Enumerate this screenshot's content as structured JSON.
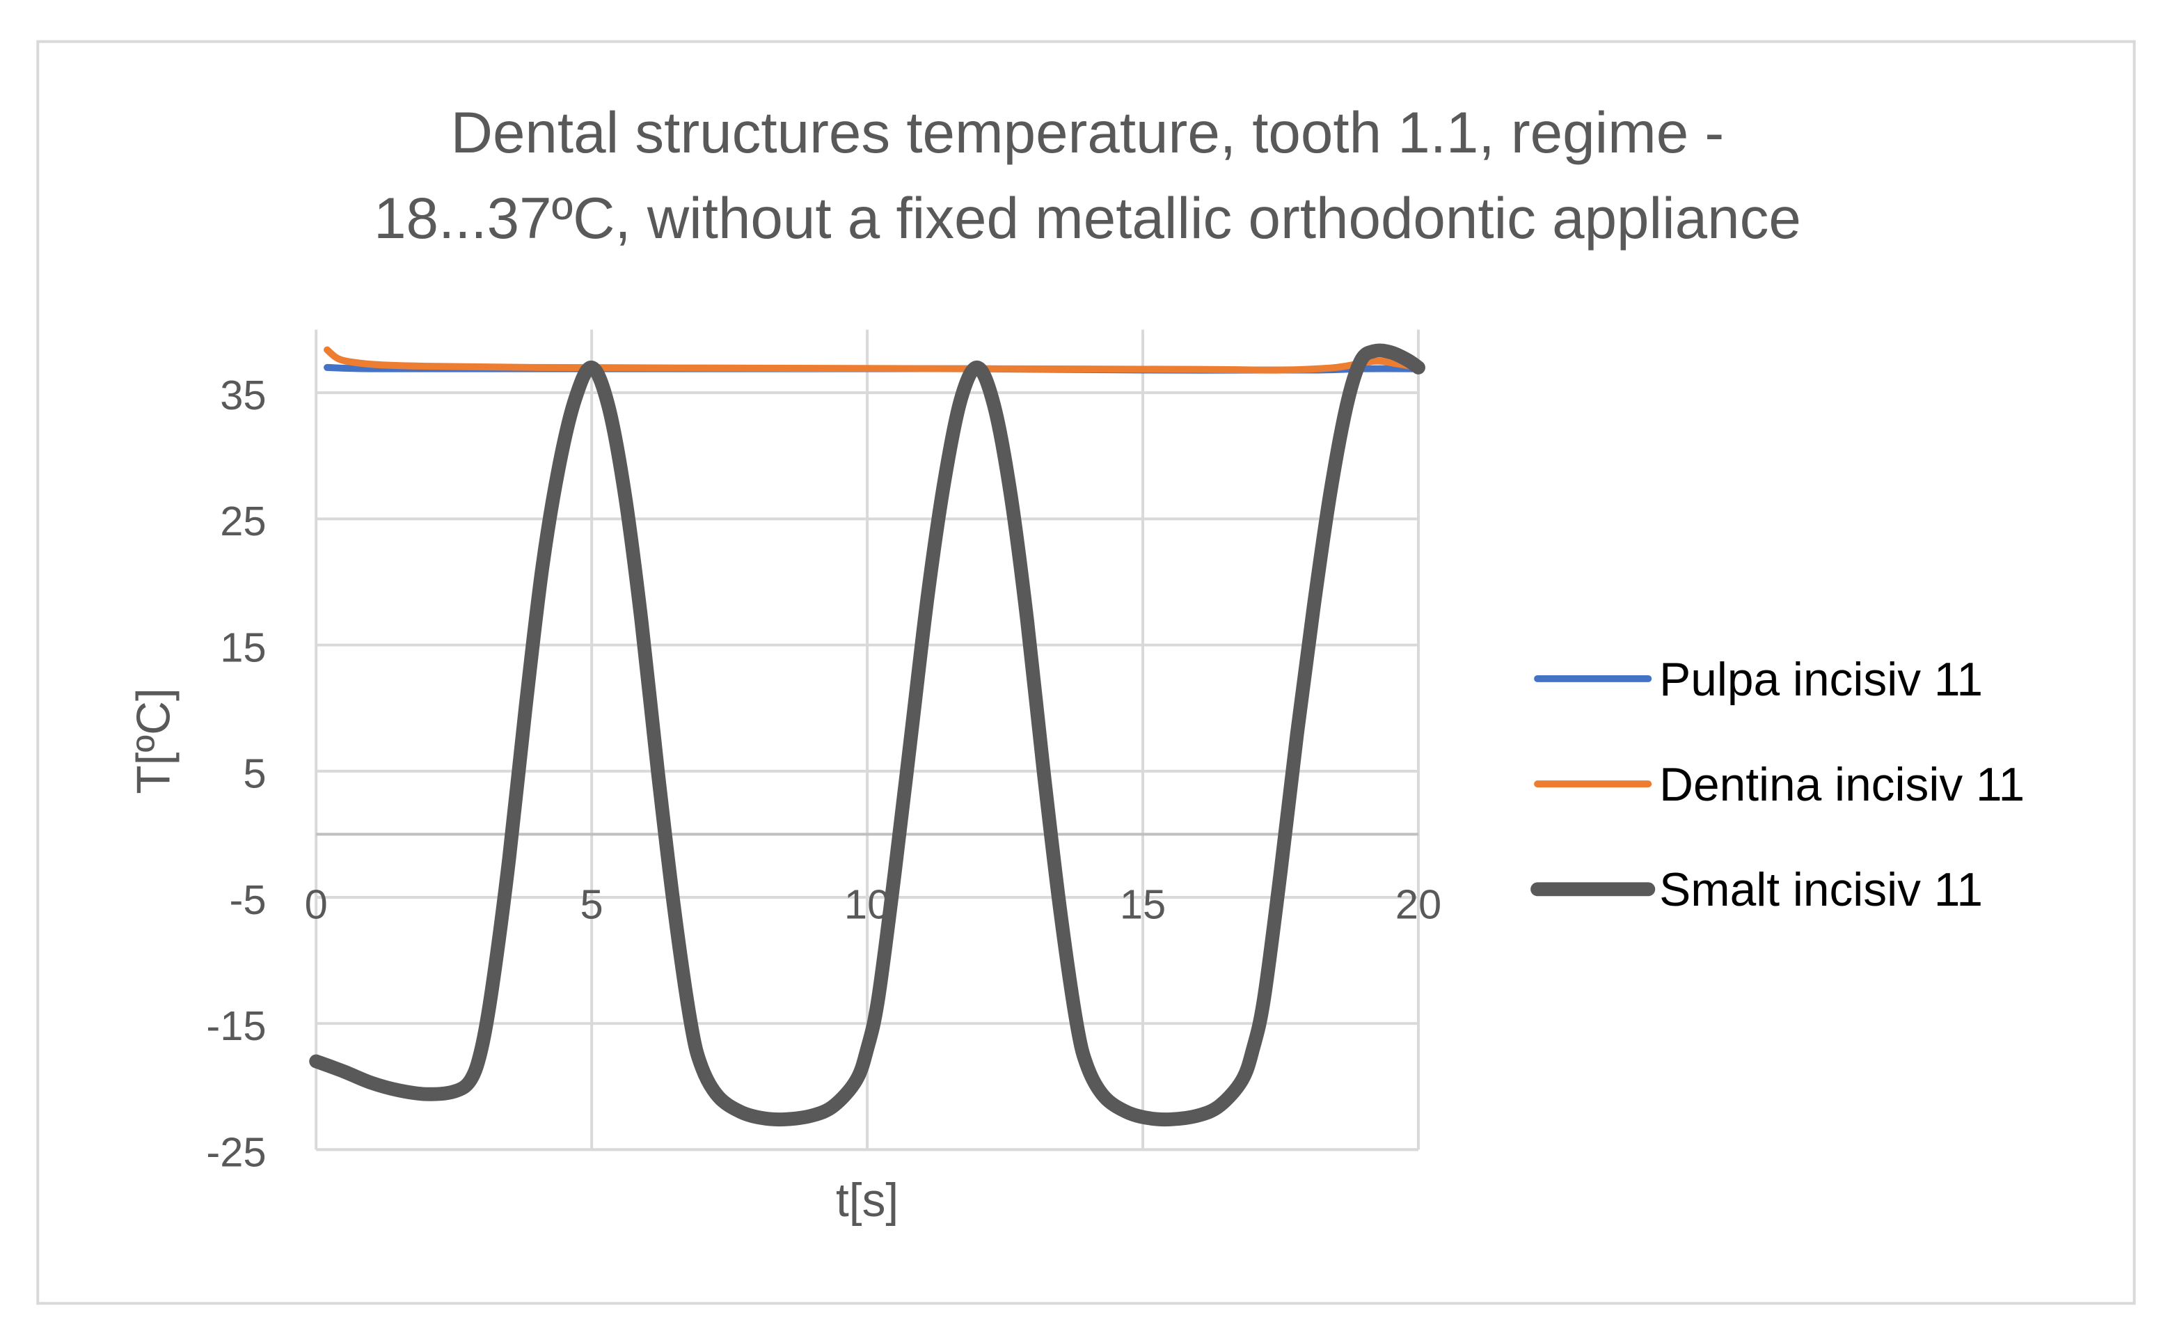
{
  "chart_data": {
    "type": "line",
    "title": [
      "Dental structures temperature, tooth 1.1, regime -",
      "18...37ºC, without a fixed metallic orthodontic appliance"
    ],
    "xlabel": "t[s]",
    "ylabel": "T[ºC]",
    "xlim": [
      0,
      20
    ],
    "ylim": [
      -25,
      40
    ],
    "xticks": [
      0,
      5,
      10,
      15,
      20
    ],
    "yticks": [
      -25,
      -15,
      -5,
      5,
      15,
      25,
      35
    ],
    "grid": true,
    "legend_position": "right",
    "series": [
      {
        "name": "Pulpa incisiv 11",
        "color": "#4472C4",
        "x": [
          0.2,
          1,
          3,
          6,
          9,
          12,
          15,
          18,
          19,
          20
        ],
        "y": [
          37.0,
          36.9,
          36.9,
          36.9,
          36.9,
          36.9,
          36.8,
          36.8,
          36.9,
          36.9
        ]
      },
      {
        "name": "Dentina incisiv 11",
        "color": "#ED7D31",
        "x": [
          0.2,
          0.4,
          0.7,
          1.2,
          2,
          4,
          8,
          12,
          16,
          17.5,
          18.5,
          19.2,
          19.6,
          20
        ],
        "y": [
          38.4,
          37.7,
          37.4,
          37.2,
          37.1,
          37.0,
          36.95,
          36.9,
          36.85,
          36.8,
          37.0,
          37.5,
          37.3,
          37.0
        ]
      },
      {
        "name": "Smalt incisiv 11",
        "color": "#595959",
        "x": [
          0,
          0.5,
          1,
          1.5,
          2,
          2.5,
          2.8,
          3.0,
          3.2,
          3.5,
          3.8,
          4.1,
          4.4,
          4.7,
          5.0,
          5.3,
          5.6,
          5.9,
          6.2,
          6.5,
          6.8,
          7.0,
          7.3,
          7.7,
          8.1,
          8.5,
          9.0,
          9.4,
          9.8,
          10.0,
          10.2,
          10.5,
          10.8,
          11.1,
          11.4,
          11.7,
          12.0,
          12.3,
          12.6,
          12.9,
          13.2,
          13.5,
          13.8,
          14.0,
          14.3,
          14.7,
          15.1,
          15.5,
          16.0,
          16.4,
          16.8,
          17.0,
          17.2,
          17.5,
          17.8,
          18.1,
          18.4,
          18.7,
          18.95,
          19.2,
          19.5,
          19.8,
          20.0
        ],
        "y": [
          -18,
          -18.8,
          -19.7,
          -20.3,
          -20.6,
          -20.4,
          -19.5,
          -17,
          -12,
          -2,
          10,
          21,
          29,
          34.5,
          37,
          34,
          27,
          17,
          5,
          -6,
          -15,
          -18.5,
          -20.8,
          -22,
          -22.5,
          -22.6,
          -22.3,
          -21.5,
          -19.5,
          -17,
          -13,
          -3,
          8,
          19,
          28,
          34.5,
          37,
          34,
          27,
          17,
          5,
          -6,
          -15,
          -18.5,
          -20.8,
          -22,
          -22.5,
          -22.6,
          -22.3,
          -21.5,
          -19.5,
          -17,
          -13,
          -3,
          8,
          18,
          27,
          34,
          37.5,
          38.3,
          38.2,
          37.6,
          37
        ]
      }
    ]
  }
}
